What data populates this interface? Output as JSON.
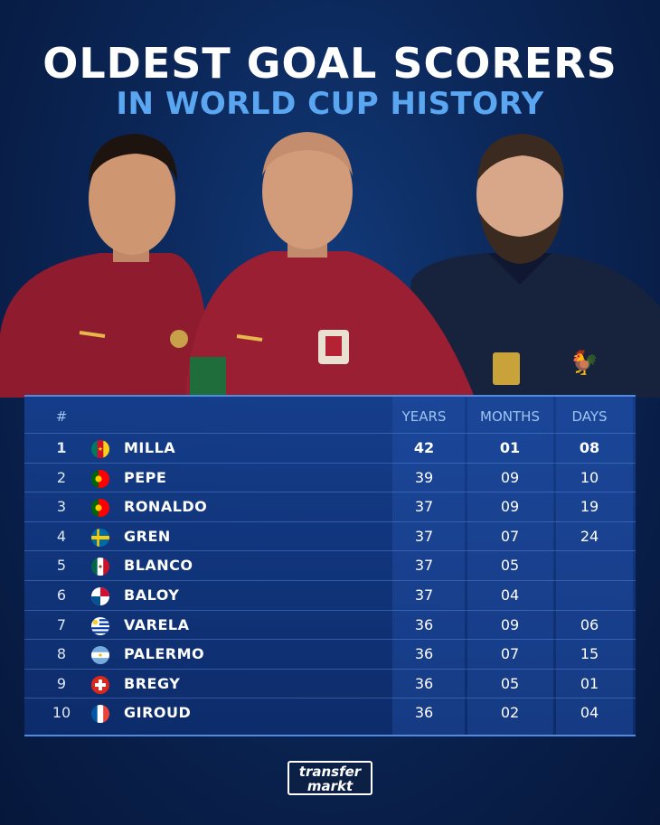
{
  "title": "OLDEST GOAL SCORERS",
  "subtitle": "IN WORLD CUP HISTORY",
  "table": {
    "headers": {
      "rank": "#",
      "years": "YEARS",
      "months": "MONTHS",
      "days": "DAYS"
    },
    "rows": [
      {
        "rank": "1",
        "flag": "cameroon-flag-icon",
        "name": "MILLA",
        "years": "42",
        "months": "01",
        "days": "08"
      },
      {
        "rank": "2",
        "flag": "portugal-flag-icon",
        "name": "PEPE",
        "years": "39",
        "months": "09",
        "days": "10"
      },
      {
        "rank": "3",
        "flag": "portugal-flag-icon",
        "name": "RONALDO",
        "years": "37",
        "months": "09",
        "days": "19"
      },
      {
        "rank": "4",
        "flag": "sweden-flag-icon",
        "name": "GREN",
        "years": "37",
        "months": "07",
        "days": "24"
      },
      {
        "rank": "5",
        "flag": "mexico-flag-icon",
        "name": "BLANCO",
        "years": "37",
        "months": "05",
        "days": ""
      },
      {
        "rank": "6",
        "flag": "panama-flag-icon",
        "name": "BALOY",
        "years": "37",
        "months": "04",
        "days": ""
      },
      {
        "rank": "7",
        "flag": "uruguay-flag-icon",
        "name": "VARELA",
        "years": "36",
        "months": "09",
        "days": "06"
      },
      {
        "rank": "8",
        "flag": "argentina-flag-icon",
        "name": "PALERMO",
        "years": "36",
        "months": "07",
        "days": "15"
      },
      {
        "rank": "9",
        "flag": "switzerland-flag-icon",
        "name": "BREGY",
        "years": "36",
        "months": "05",
        "days": "01"
      },
      {
        "rank": "10",
        "flag": "france-flag-icon",
        "name": "GIROUD",
        "years": "36",
        "months": "02",
        "days": "04"
      }
    ]
  },
  "logo": {
    "line1": "transfer",
    "line2": "markt"
  },
  "colors": {
    "subtitle": "#5aa6f0",
    "accent_line": "#4f8be0",
    "portugal_kit": "#8e1b2e",
    "france_kit": "#17223d"
  }
}
